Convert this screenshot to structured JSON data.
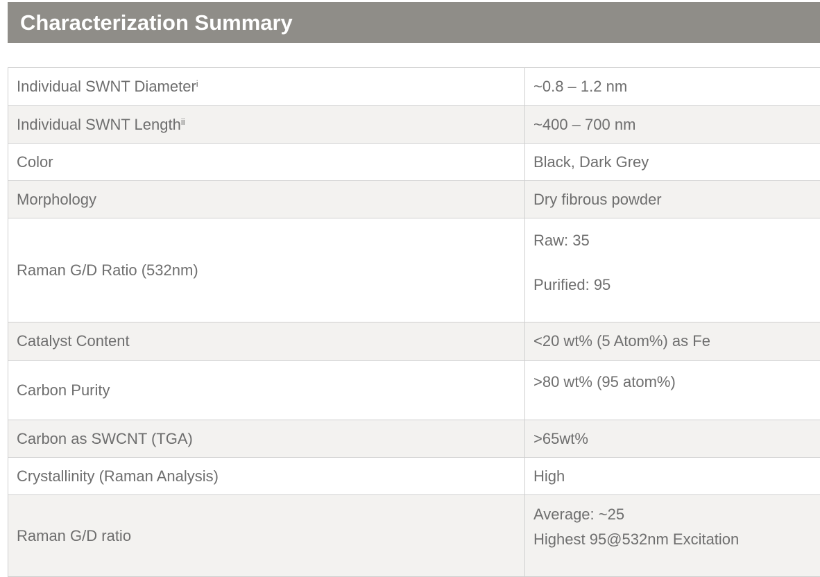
{
  "title": "Characterization Summary",
  "rows": [
    {
      "label": "Individual SWNT Diameter",
      "sup": "i",
      "value": "~0.8 – 1.2 nm"
    },
    {
      "label": "Individual SWNT Length",
      "sup": "ii",
      "value": "~400 – 700 nm"
    },
    {
      "label": "Color",
      "value": "Black, Dark Grey"
    },
    {
      "label": "Morphology",
      "value": "Dry fibrous powder"
    },
    {
      "label": "Raman G/D Ratio (532nm)",
      "values": [
        "Raw: 35",
        "Purified: 95"
      ]
    },
    {
      "label": "Catalyst Content",
      "value": "<20 wt% (5 Atom%) as Fe"
    },
    {
      "label": "Carbon Purity",
      "value": ">80 wt% (95 atom%)"
    },
    {
      "label": "Carbon as SWCNT (TGA)",
      "value": ">65wt%"
    },
    {
      "label": "Crystallinity (Raman Analysis)",
      "value": "High"
    },
    {
      "label": "Raman G/D ratio",
      "values": [
        "Average: ~25",
        "Highest 95@532nm Excitation"
      ]
    }
  ]
}
